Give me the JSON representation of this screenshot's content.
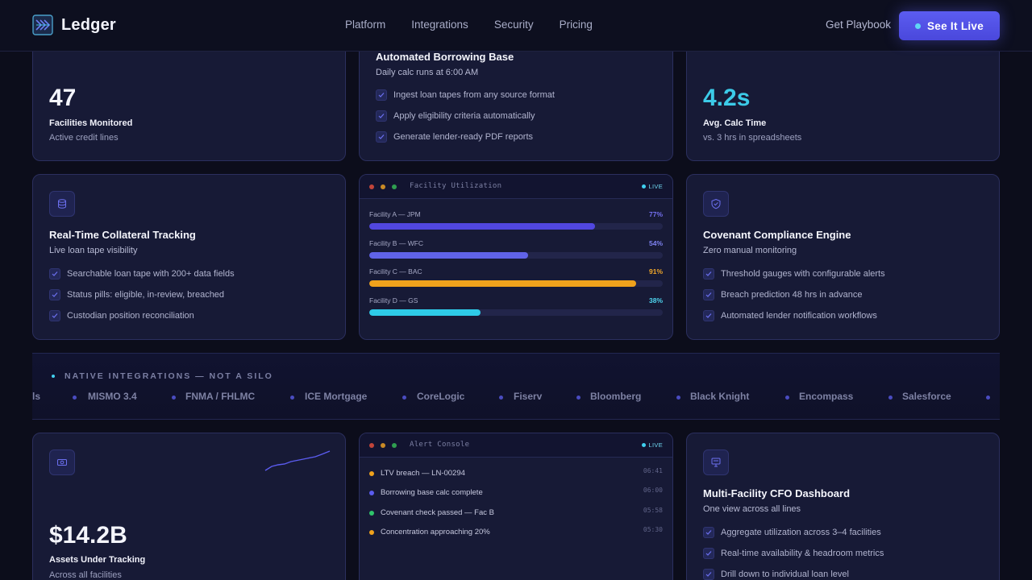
{
  "nav": {
    "logo_text": "Ledger",
    "links": [
      "Platform",
      "Integrations",
      "Security",
      "Pricing"
    ],
    "secondary": "Get Playbook",
    "cta": "See It Live"
  },
  "stats": {
    "facilities": {
      "value": "47",
      "label": "Facilities Monitored",
      "sub": "Active credit lines"
    },
    "calc_time": {
      "value": "4.2s",
      "label": "Avg. Calc Time",
      "sub": "vs. 3 hrs in spreadsheets"
    },
    "assets": {
      "value": "$14.2B",
      "label": "Assets Under Tracking",
      "sub": "Across all facilities"
    }
  },
  "borrowing_base": {
    "title": "Automated Borrowing Base",
    "sub": "Daily calc runs at 6:00 AM",
    "features": [
      "Ingest loan tapes from any source format",
      "Apply eligibility criteria automatically",
      "Generate lender-ready PDF reports"
    ]
  },
  "collateral": {
    "title": "Real-Time Collateral Tracking",
    "sub": "Live loan tape visibility",
    "features": [
      "Searchable loan tape with 200+ data fields",
      "Status pills: eligible, in-review, breached",
      "Custodian position reconciliation"
    ]
  },
  "utilization": {
    "title": "Facility Utilization",
    "live": "LIVE",
    "rows": [
      {
        "name": "Facility A — JPM",
        "pct_label": "77%",
        "value": 0.77,
        "color": "#5147e0",
        "label_color": "#7470f0"
      },
      {
        "name": "Facility B — WFC",
        "pct_label": "54%",
        "value": 0.54,
        "color": "#6063e8",
        "label_color": "#7f83f2"
      },
      {
        "name": "Facility C — BAC",
        "pct_label": "91%",
        "value": 0.91,
        "color": "#f0a21c",
        "label_color": "#f2a82a"
      },
      {
        "name": "Facility D — GS",
        "pct_label": "38%",
        "value": 0.38,
        "color": "#2ecbe8",
        "label_color": "#4fd6f0"
      }
    ]
  },
  "covenant": {
    "title": "Covenant Compliance Engine",
    "sub": "Zero manual monitoring",
    "features": [
      "Threshold gauges with configurable alerts",
      "Breach prediction 48 hrs in advance",
      "Automated lender notification workflows"
    ]
  },
  "integrations": {
    "title": "NATIVE INTEGRATIONS — NOT A SILO",
    "items": [
      "ls",
      "MISMO 3.4",
      "FNMA / FHLMC",
      "ICE Mortgage",
      "CoreLogic",
      "Fiserv",
      "Bloomberg",
      "Black Knight",
      "Encompass",
      "Salesforce"
    ]
  },
  "alerts": {
    "title": "Alert Console",
    "live": "LIVE",
    "rows": [
      {
        "text": "LTV breach — LN-00294",
        "time": "06:41",
        "color": "#f0a21c"
      },
      {
        "text": "Borrowing base calc complete",
        "time": "06:00",
        "color": "#5b5cf0"
      },
      {
        "text": "Covenant check passed — Fac B",
        "time": "05:58",
        "color": "#2fc46b"
      },
      {
        "text": "Concentration approaching 20%",
        "time": "05:30",
        "color": "#f0a21c"
      }
    ]
  },
  "cfo": {
    "title": "Multi-Facility CFO Dashboard",
    "sub": "One view across all lines",
    "features": [
      "Aggregate utilization across 3–4 facilities",
      "Real-time availability & headroom metrics",
      "Drill down to individual loan level"
    ]
  },
  "colors": {
    "accent": "#5b5cf0",
    "cyan": "#2ecbe8",
    "background": "#0c0d1b",
    "card": "#171a36"
  }
}
